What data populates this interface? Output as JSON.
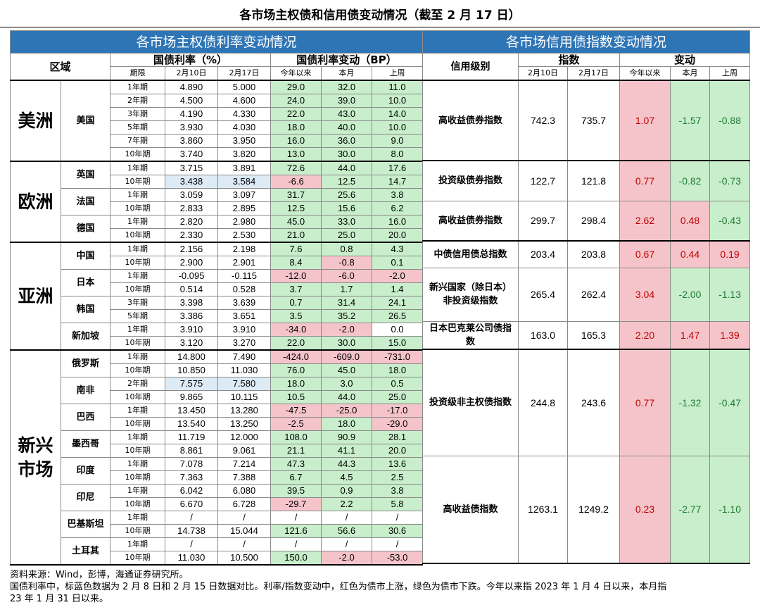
{
  "title": "各市场主权债和信用债变动情况（截至 2 月 17 日）",
  "sovereign": {
    "band": "各市场主权债利率变动情况",
    "hdr_region": "区域",
    "hdr_rate": "国债利率（%）",
    "hdr_change": "国债利率变动（BP）",
    "sub_term": "期限",
    "sub_d1": "2月10日",
    "sub_d2": "2月17日",
    "sub_ytd": "今年以来",
    "sub_mtd": "本月",
    "sub_wk": "上周",
    "rows": [
      {
        "region": "美洲",
        "country": "美国",
        "period": "1年期",
        "r1": "4.890",
        "r2": "5.000",
        "ytd": "29.0",
        "mtd": "32.0",
        "wk": "11.0"
      },
      {
        "period": "2年期",
        "r1": "4.500",
        "r2": "4.600",
        "ytd": "24.0",
        "mtd": "39.0",
        "wk": "10.0"
      },
      {
        "period": "3年期",
        "r1": "4.190",
        "r2": "4.330",
        "ytd": "22.0",
        "mtd": "43.0",
        "wk": "14.0"
      },
      {
        "period": "5年期",
        "r1": "3.930",
        "r2": "4.030",
        "ytd": "18.0",
        "mtd": "40.0",
        "wk": "10.0"
      },
      {
        "period": "7年期",
        "r1": "3.860",
        "r2": "3.950",
        "ytd": "16.0",
        "mtd": "36.0",
        "wk": "9.0"
      },
      {
        "period": "10年期",
        "r1": "3.740",
        "r2": "3.820",
        "ytd": "13.0",
        "mtd": "30.0",
        "wk": "8.0"
      },
      {
        "region": "欧洲",
        "country": "英国",
        "period": "1年期",
        "r1": "3.715",
        "r2": "3.891",
        "ytd": "72.6",
        "mtd": "44.0",
        "wk": "17.6"
      },
      {
        "period": "10年期",
        "r1": "3.438",
        "r2": "3.584",
        "ytd": "-6.6",
        "mtd": "12.5",
        "wk": "14.7"
      },
      {
        "country": "法国",
        "period": "1年期",
        "r1": "3.059",
        "r2": "3.097",
        "ytd": "31.7",
        "mtd": "25.6",
        "wk": "3.8"
      },
      {
        "period": "10年期",
        "r1": "2.833",
        "r2": "2.895",
        "ytd": "12.5",
        "mtd": "15.6",
        "wk": "6.2"
      },
      {
        "country": "德国",
        "period": "1年期",
        "r1": "2.820",
        "r2": "2.980",
        "ytd": "45.0",
        "mtd": "33.0",
        "wk": "16.0"
      },
      {
        "period": "10年期",
        "r1": "2.330",
        "r2": "2.530",
        "ytd": "21.0",
        "mtd": "25.0",
        "wk": "20.0"
      },
      {
        "region": "亚洲",
        "country": "中国",
        "period": "1年期",
        "r1": "2.156",
        "r2": "2.198",
        "ytd": "7.6",
        "mtd": "0.8",
        "wk": "4.3"
      },
      {
        "period": "10年期",
        "r1": "2.900",
        "r2": "2.901",
        "ytd": "8.4",
        "mtd": "-0.8",
        "wk": "0.1"
      },
      {
        "country": "日本",
        "period": "1年期",
        "r1": "-0.095",
        "r2": "-0.115",
        "ytd": "-12.0",
        "mtd": "-6.0",
        "wk": "-2.0"
      },
      {
        "period": "10年期",
        "r1": "0.514",
        "r2": "0.528",
        "ytd": "3.7",
        "mtd": "1.7",
        "wk": "1.4"
      },
      {
        "country": "韩国",
        "period": "3年期",
        "r1": "3.398",
        "r2": "3.639",
        "ytd": "0.7",
        "mtd": "31.4",
        "wk": "24.1"
      },
      {
        "period": "5年期",
        "r1": "3.386",
        "r2": "3.651",
        "ytd": "3.5",
        "mtd": "35.2",
        "wk": "26.5"
      },
      {
        "country": "新加坡",
        "period": "1年期",
        "r1": "3.910",
        "r2": "3.910",
        "ytd": "-34.0",
        "mtd": "-2.0",
        "wk": "0.0"
      },
      {
        "period": "10年期",
        "r1": "3.120",
        "r2": "3.270",
        "ytd": "22.0",
        "mtd": "30.0",
        "wk": "15.0"
      },
      {
        "region": "新兴市场",
        "country": "俄罗斯",
        "period": "1年期",
        "r1": "14.800",
        "r2": "7.490",
        "ytd": "-424.0",
        "mtd": "-609.0",
        "wk": "-731.0"
      },
      {
        "period": "10年期",
        "r1": "10.850",
        "r2": "11.030",
        "ytd": "76.0",
        "mtd": "45.0",
        "wk": "18.0"
      },
      {
        "country": "南非",
        "period": "2年期",
        "r1": "7.575",
        "r2": "7.580",
        "ytd": "18.0",
        "mtd": "3.0",
        "wk": "0.5"
      },
      {
        "period": "10年期",
        "r1": "9.865",
        "r2": "10.115",
        "ytd": "10.5",
        "mtd": "44.0",
        "wk": "25.0"
      },
      {
        "country": "巴西",
        "period": "1年期",
        "r1": "13.450",
        "r2": "13.280",
        "ytd": "-47.5",
        "mtd": "-25.0",
        "wk": "-17.0"
      },
      {
        "period": "10年期",
        "r1": "13.540",
        "r2": "13.250",
        "ytd": "-2.5",
        "mtd": "18.0",
        "wk": "-29.0"
      },
      {
        "country": "墨西哥",
        "period": "1年期",
        "r1": "11.719",
        "r2": "12.000",
        "ytd": "108.0",
        "mtd": "90.9",
        "wk": "28.1"
      },
      {
        "period": "10年期",
        "r1": "8.861",
        "r2": "9.061",
        "ytd": "21.1",
        "mtd": "41.1",
        "wk": "20.0"
      },
      {
        "country": "印度",
        "period": "1年期",
        "r1": "7.078",
        "r2": "7.214",
        "ytd": "47.3",
        "mtd": "44.3",
        "wk": "13.6"
      },
      {
        "period": "10年期",
        "r1": "7.363",
        "r2": "7.388",
        "ytd": "6.7",
        "mtd": "4.5",
        "wk": "2.5"
      },
      {
        "country": "印尼",
        "period": "1年期",
        "r1": "6.042",
        "r2": "6.080",
        "ytd": "39.5",
        "mtd": "0.9",
        "wk": "3.8"
      },
      {
        "period": "10年期",
        "r1": "6.670",
        "r2": "6.728",
        "ytd": "-29.7",
        "mtd": "2.2",
        "wk": "5.8"
      },
      {
        "country": "巴基斯坦",
        "period": "1年期",
        "r1": "/",
        "r2": "/",
        "ytd": "/",
        "mtd": "/",
        "wk": "/"
      },
      {
        "period": "10年期",
        "r1": "14.738",
        "r2": "15.044",
        "ytd": "121.6",
        "mtd": "56.6",
        "wk": "30.6"
      },
      {
        "country": "土耳其",
        "period": "1年期",
        "r1": "/",
        "r2": "/",
        "ytd": "/",
        "mtd": "/",
        "wk": "/"
      },
      {
        "period": "10年期",
        "r1": "11.030",
        "r2": "10.500",
        "ytd": "150.0",
        "mtd": "-2.0",
        "wk": "-53.0"
      }
    ]
  },
  "credit": {
    "band": "各市场信用债指数变动情况",
    "hdr_grade": "信用级别",
    "hdr_index": "指数",
    "hdr_change": "变动",
    "sub_d1": "2月10日",
    "sub_d2": "2月17日",
    "sub_ytd": "今年以来",
    "sub_mtd": "本月",
    "sub_wk": "上周",
    "rows": [
      {
        "name": "高收益债券指数",
        "v1": "742.3",
        "v2": "735.7",
        "ytd": "1.07",
        "mtd": "-1.57",
        "wk": "-0.88"
      },
      {
        "name": "投资级债券指数",
        "v1": "122.7",
        "v2": "121.8",
        "ytd": "0.77",
        "mtd": "-0.82",
        "wk": "-0.73"
      },
      {
        "name": "高收益债券指数",
        "v1": "299.7",
        "v2": "298.4",
        "ytd": "2.62",
        "mtd": "0.48",
        "wk": "-0.43"
      },
      {
        "name": "中债信用债总指数",
        "v1": "203.4",
        "v2": "203.8",
        "ytd": "0.67",
        "mtd": "0.44",
        "wk": "0.19"
      },
      {
        "name": "新兴国家（除日本）非投资级指数",
        "v1": "265.4",
        "v2": "262.4",
        "ytd": "3.04",
        "mtd": "-2.00",
        "wk": "-1.13"
      },
      {
        "name": "日本巴克莱公司债指数",
        "v1": "163.0",
        "v2": "165.3",
        "ytd": "2.20",
        "mtd": "1.47",
        "wk": "1.39"
      },
      {
        "name": "投资级非主权债指数",
        "v1": "244.8",
        "v2": "243.6",
        "ytd": "0.77",
        "mtd": "-1.32",
        "wk": "-0.47"
      },
      {
        "name": "高收益债指数",
        "v1": "1263.1",
        "v2": "1249.2",
        "ytd": "0.23",
        "mtd": "-2.77",
        "wk": "-1.10"
      }
    ]
  },
  "notes": {
    "line1": "资料来源：Wind，彭博，海通证券研究所。",
    "line2": "国债利率中，标蓝色数据为 2 月 8 日和 2 月 15 日数据对比。利率/指数变动中，红色为债市上涨，绿色为债市下跌。今年以来指 2023 年 1 月 4 日以来，本月指",
    "line3": "23 年 1 月 31 日以来。"
  },
  "colors": {
    "band": "#2E75B6",
    "green": "#C8EECB",
    "pink": "#F5C4CA",
    "blue": "#DDEBF7"
  }
}
